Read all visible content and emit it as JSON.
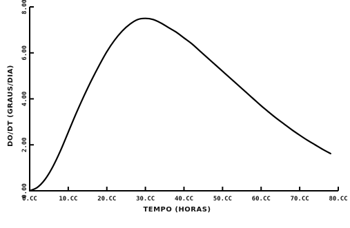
{
  "chart_data": {
    "type": "line",
    "title": "",
    "xlabel": "TEMPO (HORAS)",
    "ylabel": "DO/DT (GRAUS/DIA)",
    "xlim": [
      0,
      80
    ],
    "ylim": [
      0,
      8
    ],
    "x_ticks": [
      0,
      10,
      20,
      30,
      40,
      50,
      60,
      70,
      80
    ],
    "x_tick_labels": [
      "0.CC",
      "10.CC",
      "20.CC",
      "30.CC",
      "40.CC",
      "50.CC",
      "60.CC",
      "70.CC",
      "80.CC"
    ],
    "y_ticks": [
      0,
      2,
      4,
      6,
      8
    ],
    "y_tick_labels": [
      "0.00",
      "2.00",
      "4.00",
      "6.00",
      "8.00"
    ],
    "grid": false,
    "series": [
      {
        "name": "",
        "color": "#000000",
        "x": [
          0,
          2,
          4,
          6,
          8,
          10,
          12,
          14,
          16,
          18,
          20,
          22,
          24,
          26,
          28,
          30,
          32,
          34,
          36,
          38,
          40,
          42,
          44,
          46,
          48,
          50,
          52,
          54,
          56,
          58,
          60,
          62,
          64,
          66,
          68,
          70,
          72,
          74,
          76,
          78
        ],
        "y": [
          0.0,
          0.15,
          0.5,
          1.05,
          1.75,
          2.55,
          3.35,
          4.1,
          4.8,
          5.45,
          6.05,
          6.55,
          6.95,
          7.25,
          7.45,
          7.5,
          7.45,
          7.3,
          7.1,
          6.9,
          6.65,
          6.4,
          6.1,
          5.8,
          5.5,
          5.2,
          4.9,
          4.6,
          4.3,
          4.0,
          3.7,
          3.42,
          3.15,
          2.9,
          2.65,
          2.42,
          2.2,
          2.0,
          1.8,
          1.62
        ]
      }
    ]
  }
}
